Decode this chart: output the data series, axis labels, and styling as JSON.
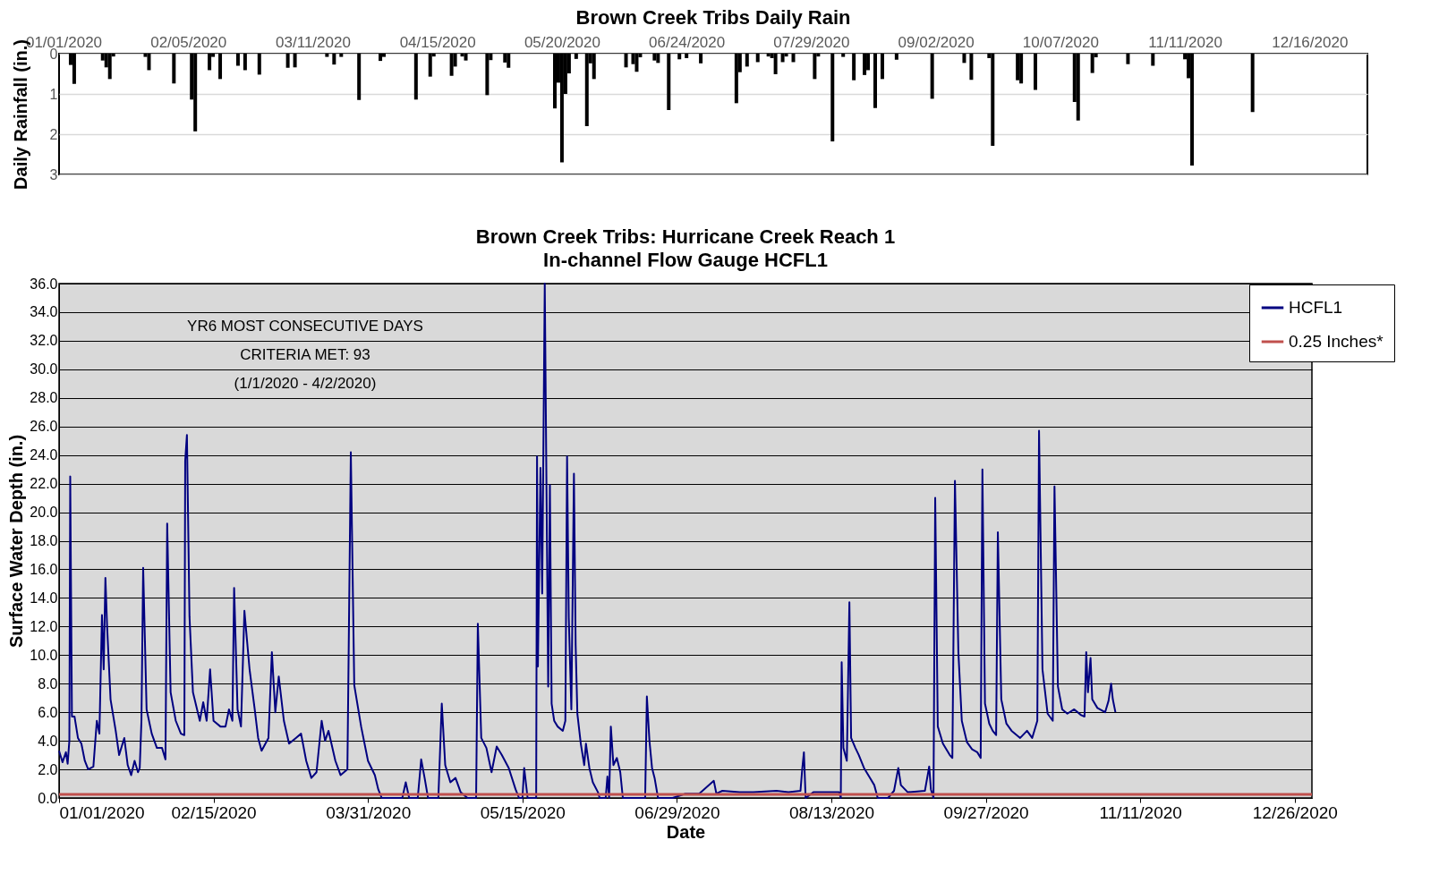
{
  "chart_data": [
    {
      "type": "bar",
      "title": "Brown Creek Tribs Daily Rain",
      "ylabel": "Daily Rainfall (in.)",
      "color": "#000000",
      "grid": "y",
      "xlim": [
        "2020-01-01",
        "2020-12-31"
      ],
      "ylim": [
        3,
        0
      ],
      "yticks": [
        0,
        1,
        2,
        3
      ],
      "xticks": [
        {
          "value": "2020-01-01",
          "label": "01/01/2020"
        },
        {
          "value": "2020-02-05",
          "label": "02/05/2020"
        },
        {
          "value": "2020-03-11",
          "label": "03/11/2020"
        },
        {
          "value": "2020-04-15",
          "label": "04/15/2020"
        },
        {
          "value": "2020-05-20",
          "label": "05/20/2020"
        },
        {
          "value": "2020-06-24",
          "label": "06/24/2020"
        },
        {
          "value": "2020-07-29",
          "label": "07/29/2020"
        },
        {
          "value": "2020-09-02",
          "label": "09/02/2020"
        },
        {
          "value": "2020-10-07",
          "label": "10/07/2020"
        },
        {
          "value": "2020-11-11",
          "label": "11/11/2020"
        },
        {
          "value": "2020-12-16",
          "label": "12/16/2020"
        }
      ],
      "x": [
        "2020-01-03",
        "2020-01-04",
        "2020-01-12",
        "2020-01-13",
        "2020-01-14",
        "2020-01-15",
        "2020-01-24",
        "2020-01-25",
        "2020-02-01",
        "2020-02-06",
        "2020-02-07",
        "2020-02-11",
        "2020-02-12",
        "2020-02-14",
        "2020-02-19",
        "2020-02-21",
        "2020-02-25",
        "2020-03-04",
        "2020-03-06",
        "2020-03-15",
        "2020-03-17",
        "2020-03-19",
        "2020-03-24",
        "2020-03-30",
        "2020-03-31",
        "2020-04-09",
        "2020-04-13",
        "2020-04-14",
        "2020-04-19",
        "2020-04-20",
        "2020-04-22",
        "2020-04-23",
        "2020-04-29",
        "2020-04-30",
        "2020-05-04",
        "2020-05-05",
        "2020-05-18",
        "2020-05-19",
        "2020-05-20",
        "2020-05-21",
        "2020-05-22",
        "2020-05-24",
        "2020-05-27",
        "2020-05-28",
        "2020-05-29",
        "2020-06-07",
        "2020-06-09",
        "2020-06-10",
        "2020-06-11",
        "2020-06-15",
        "2020-06-16",
        "2020-06-19",
        "2020-06-22",
        "2020-06-24",
        "2020-06-28",
        "2020-07-08",
        "2020-07-09",
        "2020-07-11",
        "2020-07-14",
        "2020-07-17",
        "2020-07-18",
        "2020-07-19",
        "2020-07-21",
        "2020-07-22",
        "2020-07-24",
        "2020-07-30",
        "2020-07-31",
        "2020-08-04",
        "2020-08-07",
        "2020-08-10",
        "2020-08-13",
        "2020-08-14",
        "2020-08-16",
        "2020-08-18",
        "2020-08-22",
        "2020-09-01",
        "2020-09-10",
        "2020-09-12",
        "2020-09-17",
        "2020-09-18",
        "2020-09-25",
        "2020-09-26",
        "2020-09-30",
        "2020-10-11",
        "2020-10-12",
        "2020-10-16",
        "2020-10-17",
        "2020-10-26",
        "2020-11-02",
        "2020-11-11",
        "2020-11-12",
        "2020-11-13",
        "2020-11-30"
      ],
      "values": [
        0.28,
        0.75,
        0.17,
        0.34,
        0.63,
        0.07,
        0.08,
        0.41,
        0.74,
        1.14,
        1.93,
        0.41,
        0.08,
        0.63,
        0.3,
        0.41,
        0.52,
        0.35,
        0.34,
        0.08,
        0.27,
        0.08,
        1.15,
        0.18,
        0.08,
        1.14,
        0.57,
        0.07,
        0.55,
        0.32,
        0.07,
        0.17,
        1.03,
        0.16,
        0.22,
        0.35,
        1.36,
        0.72,
        2.7,
        1.0,
        0.49,
        0.13,
        1.8,
        0.24,
        0.63,
        0.34,
        0.26,
        0.45,
        0.09,
        0.17,
        0.23,
        1.4,
        0.14,
        0.11,
        0.24,
        1.23,
        0.46,
        0.32,
        0.21,
        0.07,
        0.11,
        0.51,
        0.21,
        0.07,
        0.21,
        0.63,
        0.07,
        2.18,
        0.08,
        0.66,
        0.53,
        0.41,
        1.35,
        0.63,
        0.15,
        1.12,
        0.23,
        0.65,
        0.11,
        2.29,
        0.66,
        0.74,
        0.9,
        1.2,
        1.66,
        0.48,
        0.09,
        0.26,
        0.3,
        0.14,
        0.61,
        2.78,
        1.45
      ]
    },
    {
      "type": "line",
      "title": "Brown Creek Tribs: Hurricane Creek Reach 1",
      "subtitle": "In-channel Flow Gauge HCFL1",
      "xlabel": "Date",
      "ylabel": "Surface Water Depth (in.)",
      "grid": "y",
      "legend": "top right",
      "xlim": [
        "2020-01-01",
        "2020-12-31"
      ],
      "ylim": [
        0,
        36
      ],
      "xticks": [
        {
          "value": "2020-01-01",
          "label": "01/01/2020"
        },
        {
          "value": "2020-02-15",
          "label": "02/15/2020"
        },
        {
          "value": "2020-03-31",
          "label": "03/31/2020"
        },
        {
          "value": "2020-05-15",
          "label": "05/15/2020"
        },
        {
          "value": "2020-06-29",
          "label": "06/29/2020"
        },
        {
          "value": "2020-08-13",
          "label": "08/13/2020"
        },
        {
          "value": "2020-09-27",
          "label": "09/27/2020"
        },
        {
          "value": "2020-11-11",
          "label": "11/11/2020"
        },
        {
          "value": "2020-12-26",
          "label": "12/26/2020"
        }
      ],
      "yticks": [
        {
          "value": 0,
          "label": "0.0"
        },
        {
          "value": 2,
          "label": "2.0"
        },
        {
          "value": 4,
          "label": "4.0"
        },
        {
          "value": 6,
          "label": "6.0"
        },
        {
          "value": 8,
          "label": "8.0"
        },
        {
          "value": 10,
          "label": "10.0"
        },
        {
          "value": 12,
          "label": "12.0"
        },
        {
          "value": 14,
          "label": "14.0"
        },
        {
          "value": 16,
          "label": "16.0"
        },
        {
          "value": 18,
          "label": "18.0"
        },
        {
          "value": 20,
          "label": "20.0"
        },
        {
          "value": 22,
          "label": "22.0"
        },
        {
          "value": 24,
          "label": "24.0"
        },
        {
          "value": 26,
          "label": "26.0"
        },
        {
          "value": 28,
          "label": "28.0"
        },
        {
          "value": 30,
          "label": "30.0"
        },
        {
          "value": 32,
          "label": "32.0"
        },
        {
          "value": 34,
          "label": "34.0"
        },
        {
          "value": 36,
          "label": "36.0"
        }
      ],
      "ref_lines": [
        {
          "axis": "y",
          "value": 0.25,
          "label": "0.25 Inches*",
          "color": "#c0504d"
        }
      ],
      "annotations": [
        "YR6 MOST CONSECUTIVE DAYS\nCRITERIA MET:  93\n(1/1/2020 - 4/2/2020)"
      ],
      "series": [
        {
          "name": "HCFL1",
          "color": "#000080",
          "x": [
            "2020-01-01",
            "2020-01-02",
            "2020-01-03",
            "2020-01-03T12:00",
            "2020-01-04",
            "2020-01-04T06:00",
            "2020-01-04T18:00",
            "2020-01-05T12:00",
            "2020-01-06T12:00",
            "2020-01-07T12:00",
            "2020-01-08T12:00",
            "2020-01-09T12:00",
            "2020-01-11",
            "2020-01-12",
            "2020-01-12T18:00",
            "2020-01-13T12:00",
            "2020-01-14",
            "2020-01-14T12:00",
            "2020-01-15",
            "2020-01-16",
            "2020-01-17T12:00",
            "2020-01-18T12:00",
            "2020-01-20",
            "2020-01-21",
            "2020-01-22",
            "2020-01-23",
            "2020-01-24",
            "2020-01-24T12:00",
            "2020-01-25",
            "2020-01-25T12:00",
            "2020-01-26T12:00",
            "2020-01-28",
            "2020-01-29T12:00",
            "2020-01-31",
            "2020-02-01",
            "2020-02-01T12:00",
            "2020-02-02T12:00",
            "2020-02-04",
            "2020-02-05T12:00",
            "2020-02-06T12:00",
            "2020-02-06T18:00",
            "2020-02-07T06:00",
            "2020-02-08",
            "2020-02-09",
            "2020-02-11",
            "2020-02-12",
            "2020-02-13",
            "2020-02-14",
            "2020-02-15",
            "2020-02-17",
            "2020-02-18T12:00",
            "2020-02-19T12:00",
            "2020-02-20T12:00",
            "2020-02-21",
            "2020-02-22",
            "2020-02-23",
            "2020-02-24",
            "2020-02-25T12:00",
            "2020-02-27",
            "2020-02-28",
            "2020-02-29",
            "2020-03-02",
            "2020-03-03",
            "2020-03-04",
            "2020-03-05",
            "2020-03-06T12:00",
            "2020-03-08",
            "2020-03-10",
            "2020-03-11T12:00",
            "2020-03-13",
            "2020-03-14T12:00",
            "2020-03-16",
            "2020-03-17T12:00",
            "2020-03-18T12:00",
            "2020-03-19T12:00",
            "2020-03-21T12:00",
            "2020-03-23",
            "2020-03-25",
            "2020-03-26",
            "2020-03-27",
            "2020-03-29",
            "2020-03-31",
            "2020-04-02",
            "2020-04-03",
            "2020-04-04",
            "2020-04-10",
            "2020-04-11",
            "2020-04-12",
            "2020-04-14T12:00",
            "2020-04-15T12:00",
            "2020-04-16T12:00",
            "2020-04-17T12:00",
            "2020-04-20T12:00",
            "2020-04-21T12:00",
            "2020-04-22T12:00",
            "2020-04-24",
            "2020-04-25T12:00",
            "2020-04-27",
            "2020-04-29",
            "2020-05-01T12:00",
            "2020-05-02",
            "2020-05-03",
            "2020-05-04T12:00",
            "2020-05-06",
            "2020-05-07T12:00",
            "2020-05-09",
            "2020-05-11",
            "2020-05-13",
            "2020-05-14",
            "2020-05-15",
            "2020-05-15T12:00",
            "2020-05-16T12:00",
            "2020-05-19",
            "2020-05-19T06:00",
            "2020-05-19T12:00",
            "2020-05-20T06:00",
            "2020-05-20T18:00",
            "2020-05-21T12:00",
            "2020-05-22",
            "2020-05-22T12:00",
            "2020-05-23",
            "2020-05-23T12:00",
            "2020-05-24T06:00",
            "2020-05-25T06:00",
            "2020-05-26T18:00",
            "2020-05-27T12:00",
            "2020-05-28",
            "2020-05-28T12:00",
            "2020-05-29T06:00",
            "2020-05-30",
            "2020-05-30T12:00",
            "2020-05-31",
            "2020-06-01",
            "2020-06-02",
            "2020-06-02T12:00",
            "2020-06-03T12:00",
            "2020-06-04T12:00",
            "2020-06-06",
            "2020-06-06T12:00",
            "2020-06-08T06:00",
            "2020-06-08T18:00",
            "2020-06-09T06:00",
            "2020-06-09T18:00",
            "2020-06-10T12:00",
            "2020-06-11T12:00",
            "2020-06-12T12:00",
            "2020-06-13T06:00",
            "2020-06-19T18:00",
            "2020-06-20T06:00",
            "2020-06-21",
            "2020-06-21T18:00",
            "2020-06-22T12:00",
            "2020-06-23T12:00",
            "2020-06-27T18:00",
            "2020-07-01T12:00",
            "2020-07-05T12:00",
            "2020-07-09T18:00",
            "2020-07-10T12:00",
            "2020-07-12T06:00",
            "2020-07-17T06:00",
            "2020-07-21T06:00",
            "2020-07-28",
            "2020-07-31T12:00",
            "2020-08-04",
            "2020-08-04T12:00",
            "2020-08-05",
            "2020-08-05T12:00",
            "2020-08-07T18:00",
            "2020-08-12T18:00",
            "2020-08-15T06:00",
            "2020-08-15T18:00",
            "2020-08-16",
            "2020-08-16T12:00",
            "2020-08-17T12:00",
            "2020-08-18T06:00",
            "2020-08-18T18:00",
            "2020-08-20",
            "2020-08-21",
            "2020-08-22T12:00",
            "2020-08-24",
            "2020-08-25T12:00",
            "2020-08-26T12:00",
            "2020-08-29T12:00",
            "2020-08-31T06:00",
            "2020-09-01T12:00",
            "2020-09-02T06:00",
            "2020-09-04T06:00",
            "2020-09-09T06:00",
            "2020-09-10T12:00",
            "2020-09-11",
            "2020-09-11T18:00",
            "2020-09-12T06:00",
            "2020-09-13",
            "2020-09-14T12:00",
            "2020-09-16T12:00",
            "2020-09-17T06:00",
            "2020-09-18",
            "2020-09-19",
            "2020-09-20",
            "2020-09-21T12:00",
            "2020-09-23",
            "2020-09-24T12:00",
            "2020-09-25T12:00",
            "2020-09-26",
            "2020-09-26T18:00",
            "2020-09-28",
            "2020-09-29",
            "2020-09-30",
            "2020-09-30T12:00",
            "2020-10-01T12:00",
            "2020-10-03",
            "2020-10-04T12:00",
            "2020-10-07",
            "2020-10-09",
            "2020-10-10T12:00",
            "2020-10-12",
            "2020-10-12T12:00",
            "2020-10-13T12:00",
            "2020-10-15",
            "2020-10-16T12:00",
            "2020-10-17",
            "2020-10-18",
            "2020-10-19T06:00",
            "2020-10-20T18:00",
            "2020-10-22T18:00",
            "2020-10-24T18:00",
            "2020-10-25T18:00",
            "2020-10-26T06:00",
            "2020-10-26T18:00",
            "2020-10-27T12:00",
            "2020-10-28",
            "2020-10-29T12:00",
            "2020-10-31T18:00",
            "2020-11-01T18:00",
            "2020-11-02T12:00",
            "2020-11-03",
            "2020-11-03T18:00"
          ],
          "values": [
            3.3,
            2.5,
            3.2,
            2.4,
            4.0,
            22.5,
            5.7,
            5.7,
            4.2,
            3.8,
            2.6,
            2.0,
            2.2,
            5.4,
            4.5,
            12.8,
            9.0,
            15.4,
            12.0,
            6.9,
            4.7,
            3.0,
            4.2,
            2.3,
            1.6,
            2.6,
            1.8,
            2.1,
            5.4,
            16.1,
            6.2,
            4.5,
            3.5,
            3.5,
            2.7,
            19.2,
            7.4,
            5.4,
            4.5,
            4.4,
            23.6,
            25.4,
            12.7,
            7.4,
            5.4,
            6.7,
            5.4,
            9.0,
            5.4,
            5.0,
            5.0,
            6.2,
            5.4,
            14.7,
            6.2,
            5.0,
            13.1,
            9.0,
            6.2,
            4.2,
            3.3,
            4.2,
            10.2,
            6.0,
            8.5,
            5.4,
            3.8,
            4.2,
            4.5,
            2.6,
            1.4,
            1.8,
            5.4,
            4.0,
            4.7,
            2.6,
            1.6,
            2.0,
            24.2,
            7.9,
            5.0,
            2.6,
            1.6,
            0.6,
            0.0,
            0.0,
            1.1,
            0.0,
            0.0,
            2.7,
            1.4,
            0.0,
            0.0,
            6.6,
            2.3,
            1.1,
            1.4,
            0.4,
            0.0,
            0.0,
            12.2,
            4.2,
            3.5,
            1.8,
            3.6,
            3.0,
            2.1,
            0.6,
            0.0,
            0.0,
            2.1,
            0.0,
            0.0,
            23.9,
            9.2,
            23.1,
            14.3,
            36.0,
            21.8,
            7.8,
            21.9,
            6.6,
            5.4,
            5.0,
            4.7,
            5.4,
            23.9,
            12.6,
            6.2,
            22.7,
            10.7,
            5.9,
            3.8,
            2.3,
            3.8,
            2.1,
            1.1,
            0.4,
            0.0,
            0.0,
            1.5,
            0.0,
            5.0,
            2.3,
            2.8,
            1.8,
            0.0,
            0.0,
            7.1,
            4.0,
            2.1,
            1.4,
            0.0,
            0.0,
            0.3,
            0.3,
            1.2,
            0.3,
            0.5,
            0.4,
            0.4,
            0.5,
            0.4,
            0.5,
            2.0,
            3.2,
            0.0,
            0.4,
            0.4,
            0.4,
            0.0,
            9.5,
            3.5,
            2.6,
            13.7,
            4.2,
            3.5,
            3.0,
            2.1,
            1.5,
            0.9,
            0.0,
            0.0,
            0.5,
            2.1,
            0.9,
            0.4,
            0.5,
            2.2,
            0.6,
            0.0,
            21.0,
            5.0,
            3.8,
            3.0,
            2.8,
            22.2,
            10.2,
            5.4,
            3.9,
            3.4,
            3.2,
            2.8,
            23.0,
            6.6,
            5.2,
            4.7,
            4.4,
            18.6,
            6.9,
            5.2,
            4.7,
            4.2,
            4.7,
            4.2,
            5.4,
            25.7,
            9.0,
            5.9,
            5.4,
            21.8,
            7.8,
            6.2,
            5.9,
            6.2,
            5.8,
            5.7,
            10.2,
            7.4,
            9.8,
            6.9,
            6.3,
            6.0,
            6.8,
            8.0,
            6.9,
            6.0
          ]
        }
      ]
    }
  ]
}
